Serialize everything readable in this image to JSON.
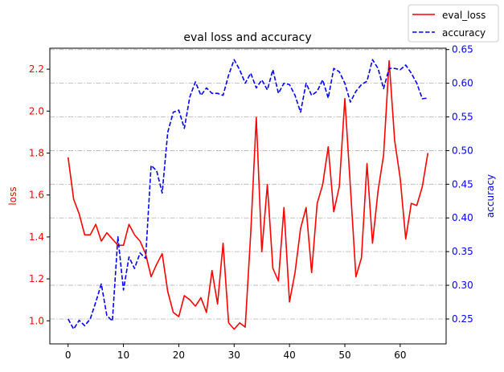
{
  "chart_data": {
    "type": "line",
    "title": "eval loss and accuracy",
    "xlabel": "",
    "ylabel_left": "loss",
    "ylabel_right": "accuracy",
    "xlim": [
      -3.3,
      68.3
    ],
    "ylim_left": [
      0.89,
      2.3
    ],
    "ylim_right": [
      0.213,
      0.652
    ],
    "x_ticks": [
      0,
      10,
      20,
      30,
      40,
      50,
      60
    ],
    "y_ticks_left": [
      1.0,
      1.2,
      1.4,
      1.6,
      1.8,
      2.0,
      2.2
    ],
    "y_ticks_right": [
      0.25,
      0.3,
      0.35,
      0.4,
      0.45,
      0.5,
      0.55,
      0.6,
      0.65
    ],
    "grid": "horizontal dash-dot, right axis",
    "legend_position": "top-right",
    "x": [
      0,
      1,
      2,
      3,
      4,
      5,
      6,
      7,
      8,
      9,
      10,
      11,
      12,
      13,
      14,
      15,
      16,
      17,
      18,
      19,
      20,
      21,
      22,
      23,
      24,
      25,
      26,
      27,
      28,
      29,
      30,
      31,
      32,
      33,
      34,
      35,
      36,
      37,
      38,
      39,
      40,
      41,
      42,
      43,
      44,
      45,
      46,
      47,
      48,
      49,
      50,
      51,
      52,
      53,
      54,
      55,
      56,
      57,
      58,
      59,
      60,
      61,
      62,
      63,
      64,
      65
    ],
    "series": [
      {
        "name": "eval_loss",
        "axis": "left",
        "color": "#ff0000",
        "style": "solid",
        "values": [
          1.78,
          1.58,
          1.51,
          1.41,
          1.41,
          1.46,
          1.38,
          1.42,
          1.39,
          1.36,
          1.36,
          1.46,
          1.41,
          1.38,
          1.32,
          1.21,
          1.27,
          1.32,
          1.14,
          1.04,
          1.02,
          1.12,
          1.1,
          1.07,
          1.11,
          1.04,
          1.24,
          1.08,
          1.37,
          0.99,
          0.96,
          0.99,
          0.97,
          1.42,
          1.97,
          1.33,
          1.65,
          1.25,
          1.19,
          1.54,
          1.09,
          1.23,
          1.44,
          1.54,
          1.23,
          1.56,
          1.65,
          1.83,
          1.52,
          1.64,
          2.06,
          1.64,
          1.21,
          1.3,
          1.75,
          1.37,
          1.62,
          1.79,
          2.24,
          1.86,
          1.68,
          1.39,
          1.56,
          1.55,
          1.64,
          1.8
        ]
      },
      {
        "name": "accuracy",
        "axis": "right",
        "color": "#0000ff",
        "style": "dashed",
        "values": [
          0.25,
          0.235,
          0.248,
          0.24,
          0.25,
          0.275,
          0.302,
          0.255,
          0.247,
          0.372,
          0.293,
          0.342,
          0.325,
          0.348,
          0.34,
          0.478,
          0.47,
          0.437,
          0.527,
          0.557,
          0.56,
          0.533,
          0.58,
          0.602,
          0.582,
          0.593,
          0.585,
          0.585,
          0.582,
          0.612,
          0.635,
          0.62,
          0.6,
          0.615,
          0.593,
          0.605,
          0.59,
          0.62,
          0.585,
          0.6,
          0.598,
          0.582,
          0.557,
          0.6,
          0.582,
          0.588,
          0.605,
          0.578,
          0.622,
          0.617,
          0.6,
          0.572,
          0.588,
          0.598,
          0.603,
          0.635,
          0.622,
          0.592,
          0.622,
          0.622,
          0.62,
          0.627,
          0.615,
          0.6,
          0.577,
          0.578
        ]
      }
    ]
  },
  "colors": {
    "loss": "#ff0000",
    "accuracy": "#0000ff",
    "grid": "#b0b0b0"
  }
}
